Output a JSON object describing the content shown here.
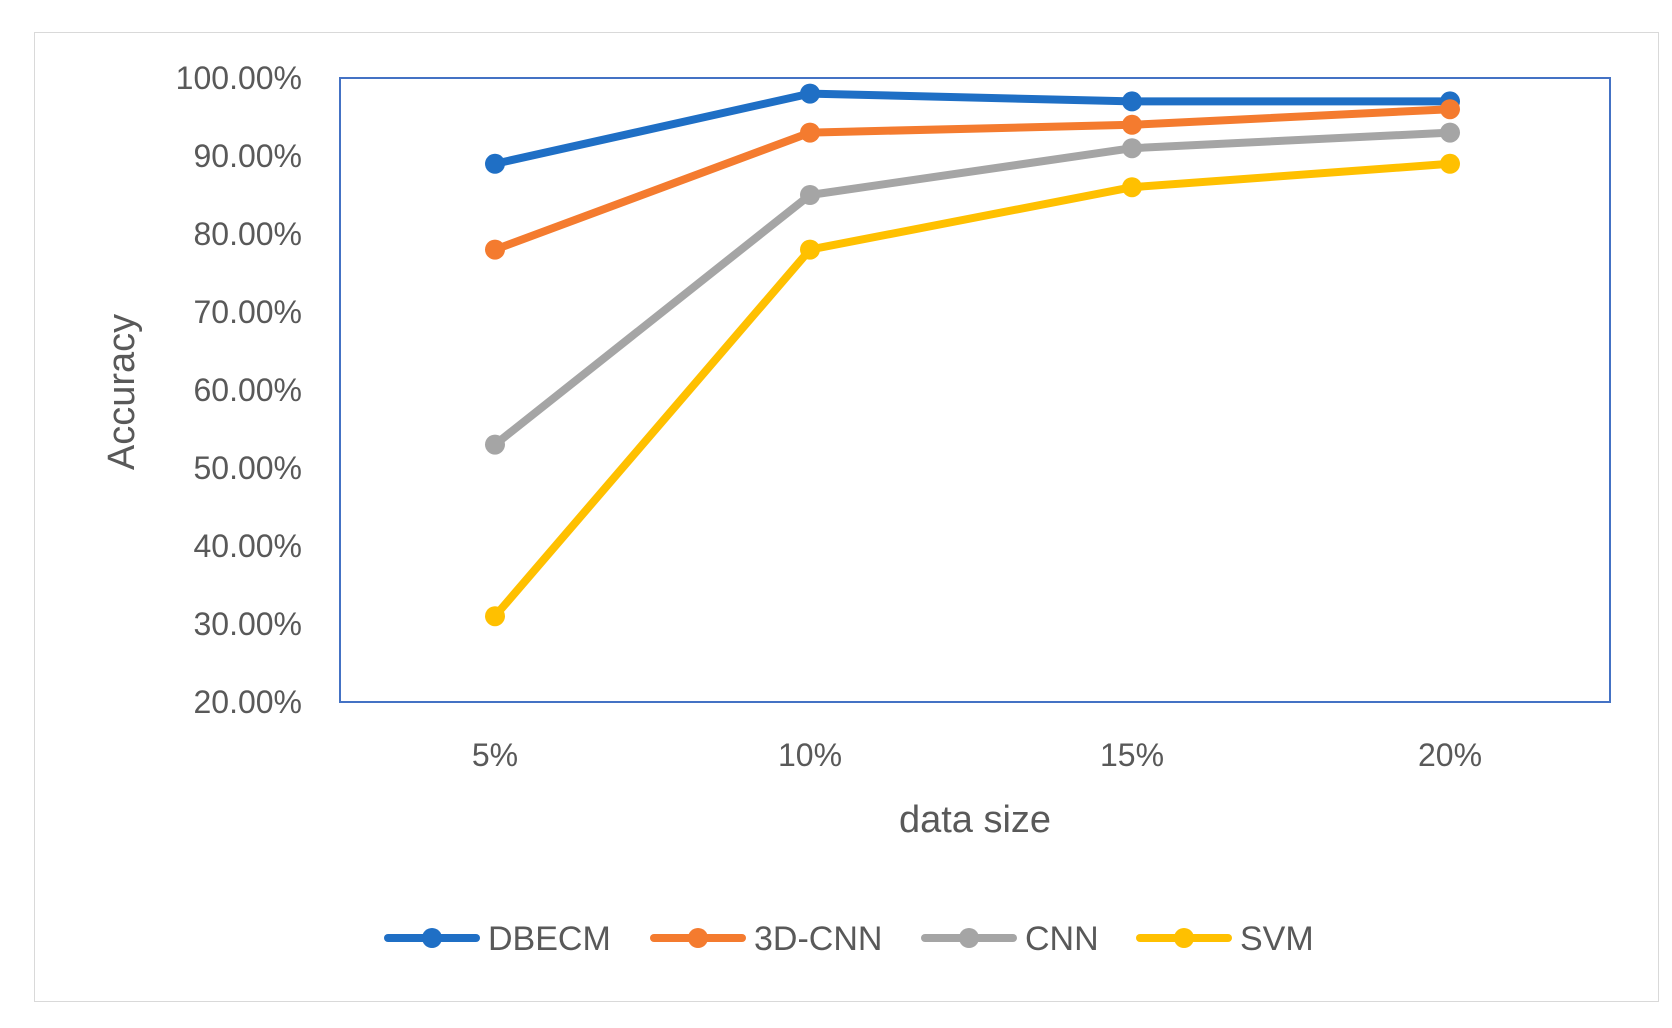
{
  "chart_data": {
    "type": "line",
    "title": "",
    "xlabel": "data size",
    "ylabel": "Accuracy",
    "categories": [
      "5%",
      "10%",
      "15%",
      "20%"
    ],
    "highlight_category": "10%",
    "highlight_color": "#f4a07a",
    "ylim": [
      0.2,
      1.0
    ],
    "y_ticks": [
      "20.00%",
      "30.00%",
      "40.00%",
      "50.00%",
      "60.00%",
      "70.00%",
      "80.00%",
      "90.00%",
      "100.00%"
    ],
    "y_tick_values": [
      0.2,
      0.3,
      0.4,
      0.5,
      0.6,
      0.7,
      0.8,
      0.9,
      1.0
    ],
    "grid": false,
    "legend_position": "bottom",
    "plot_border_color": "#4472c4",
    "series": [
      {
        "name": "DBECM",
        "color": "#1f6fc5",
        "values": [
          0.89,
          0.98,
          0.97,
          0.97
        ]
      },
      {
        "name": "3D-CNN",
        "color": "#f47b2f",
        "values": [
          0.78,
          0.93,
          0.94,
          0.96
        ]
      },
      {
        "name": "CNN",
        "color": "#a5a5a5",
        "values": [
          0.53,
          0.85,
          0.91,
          0.93
        ]
      },
      {
        "name": "SVM",
        "color": "#ffc000",
        "values": [
          0.31,
          0.78,
          0.86,
          0.89
        ]
      }
    ]
  }
}
